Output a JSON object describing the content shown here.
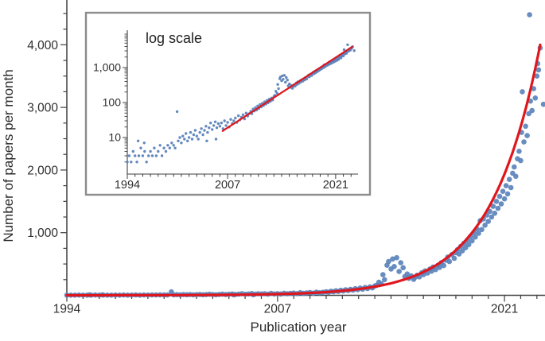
{
  "chart_data": {
    "type": "scatter",
    "title": "",
    "xlabel": "Publication year",
    "ylabel": "Number of papers per month",
    "legend": "none",
    "grid": false,
    "colors": {
      "points": "#5b83bb",
      "fit_line": "#e0161d",
      "axis": "#3f3f3f",
      "tick_labels": "#2f2f2f",
      "inset_border": "#8c8c8c",
      "background": "#ffffff"
    },
    "main_axis": {
      "xlim": [
        1994,
        2023.5
      ],
      "ylim": [
        0,
        4715
      ],
      "yticks_major": [
        1000,
        2000,
        3000,
        4000
      ],
      "ytick_minor_step": 250,
      "xticks_major": [
        1994,
        2007,
        2021
      ],
      "xtick_minor_step": 1
    },
    "inset": {
      "label": "log scale",
      "scale": "log",
      "xlim": [
        1994,
        2023.9
      ],
      "yticks_major": [
        10,
        100,
        1000
      ],
      "xticks_major": [
        1994,
        2007,
        2021
      ],
      "fit_start_year": 2006.35,
      "fit_end_year": 2023.3
    },
    "fit": {
      "type": "exponential",
      "reference_year": 2023.2,
      "value_at_reference": 4000,
      "growth_rate_per_year": 0.33
    },
    "points": [
      [
        1994,
        2
      ],
      [
        1994.25,
        3
      ],
      [
        1994.5,
        2
      ],
      [
        1994.75,
        4
      ],
      [
        1995,
        3
      ],
      [
        1995.25,
        2
      ],
      [
        1995.4,
        8
      ],
      [
        1995.5,
        3
      ],
      [
        1995.75,
        5
      ],
      [
        1996,
        3
      ],
      [
        1996.2,
        7
      ],
      [
        1996.25,
        4
      ],
      [
        1996.5,
        2
      ],
      [
        1996.75,
        3
      ],
      [
        1997,
        4
      ],
      [
        1997.25,
        3
      ],
      [
        1997.5,
        5
      ],
      [
        1997.75,
        3
      ],
      [
        1998,
        4
      ],
      [
        1998.25,
        6
      ],
      [
        1998.5,
        3
      ],
      [
        1998.75,
        5
      ],
      [
        1999,
        4
      ],
      [
        1999.25,
        6
      ],
      [
        1999.5,
        5
      ],
      [
        1999.75,
        7
      ],
      [
        2000,
        6
      ],
      [
        2000.2,
        5
      ],
      [
        2000.45,
        55
      ],
      [
        2000.6,
        8
      ],
      [
        2000.8,
        10
      ],
      [
        2001,
        7
      ],
      [
        2001.2,
        11
      ],
      [
        2001.4,
        9
      ],
      [
        2001.6,
        13
      ],
      [
        2001.8,
        8
      ],
      [
        2002,
        10
      ],
      [
        2002.2,
        14
      ],
      [
        2002.4,
        9
      ],
      [
        2002.6,
        12
      ],
      [
        2002.8,
        16
      ],
      [
        2003,
        11
      ],
      [
        2003.2,
        9
      ],
      [
        2003.4,
        14
      ],
      [
        2003.6,
        18
      ],
      [
        2003.8,
        12
      ],
      [
        2004,
        16
      ],
      [
        2004.2,
        21
      ],
      [
        2004.3,
        8
      ],
      [
        2004.4,
        14
      ],
      [
        2004.6,
        19
      ],
      [
        2004.8,
        26
      ],
      [
        2005,
        17
      ],
      [
        2005.2,
        22
      ],
      [
        2005.4,
        28
      ],
      [
        2005.5,
        9
      ],
      [
        2005.6,
        19
      ],
      [
        2005.8,
        25
      ],
      [
        2006,
        21
      ],
      [
        2006.2,
        26
      ],
      [
        2006.4,
        18
      ],
      [
        2006.6,
        30
      ],
      [
        2006.8,
        22
      ],
      [
        2007,
        27
      ],
      [
        2007.2,
        20
      ],
      [
        2007.4,
        33
      ],
      [
        2007.6,
        25
      ],
      [
        2007.8,
        30
      ],
      [
        2008,
        36
      ],
      [
        2008.2,
        27
      ],
      [
        2008.4,
        42
      ],
      [
        2008.6,
        32
      ],
      [
        2008.8,
        38
      ],
      [
        2009,
        45
      ],
      [
        2009.2,
        34
      ],
      [
        2009.4,
        50
      ],
      [
        2009.6,
        41
      ],
      [
        2009.8,
        48
      ],
      [
        2010,
        56
      ],
      [
        2010.15,
        48
      ],
      [
        2010.3,
        65
      ],
      [
        2010.45,
        57
      ],
      [
        2010.6,
        72
      ],
      [
        2010.75,
        61
      ],
      [
        2010.9,
        80
      ],
      [
        2011.05,
        68
      ],
      [
        2011.2,
        88
      ],
      [
        2011.35,
        75
      ],
      [
        2011.5,
        95
      ],
      [
        2011.65,
        82
      ],
      [
        2011.8,
        105
      ],
      [
        2011.95,
        90
      ],
      [
        2012.1,
        115
      ],
      [
        2012.25,
        98
      ],
      [
        2012.4,
        125
      ],
      [
        2012.55,
        108
      ],
      [
        2012.7,
        135
      ],
      [
        2012.85,
        118
      ],
      [
        2013,
        148
      ],
      [
        2013.1,
        160
      ],
      [
        2013.25,
        210
      ],
      [
        2013.4,
        185
      ],
      [
        2013.5,
        330
      ],
      [
        2013.6,
        250
      ],
      [
        2013.75,
        480
      ],
      [
        2013.85,
        540
      ],
      [
        2014,
        420
      ],
      [
        2014.1,
        580
      ],
      [
        2014.2,
        460
      ],
      [
        2014.35,
        600
      ],
      [
        2014.5,
        380
      ],
      [
        2014.6,
        520
      ],
      [
        2014.75,
        440
      ],
      [
        2014.85,
        300
      ],
      [
        2015,
        340
      ],
      [
        2015.1,
        270
      ],
      [
        2015.25,
        310
      ],
      [
        2015.4,
        255
      ],
      [
        2015.5,
        290
      ],
      [
        2015.6,
        320
      ],
      [
        2015.75,
        295
      ],
      [
        2015.9,
        360
      ],
      [
        2016,
        330
      ],
      [
        2016.1,
        390
      ],
      [
        2016.25,
        355
      ],
      [
        2016.4,
        420
      ],
      [
        2016.5,
        385
      ],
      [
        2016.6,
        450
      ],
      [
        2016.75,
        410
      ],
      [
        2016.9,
        480
      ],
      [
        2017,
        445
      ],
      [
        2017.1,
        520
      ],
      [
        2017.25,
        475
      ],
      [
        2017.4,
        560
      ],
      [
        2017.5,
        610
      ],
      [
        2017.6,
        540
      ],
      [
        2017.75,
        650
      ],
      [
        2017.9,
        590
      ],
      [
        2018,
        680
      ],
      [
        2018.1,
        730
      ],
      [
        2018.2,
        660
      ],
      [
        2018.3,
        780
      ],
      [
        2018.4,
        710
      ],
      [
        2018.5,
        830
      ],
      [
        2018.6,
        760
      ],
      [
        2018.7,
        880
      ],
      [
        2018.8,
        810
      ],
      [
        2018.9,
        940
      ],
      [
        2019,
        870
      ],
      [
        2019.1,
        1000
      ],
      [
        2019.2,
        930
      ],
      [
        2019.3,
        1060
      ],
      [
        2019.4,
        990
      ],
      [
        2019.5,
        1190
      ],
      [
        2019.6,
        1050
      ],
      [
        2019.7,
        1220
      ],
      [
        2019.8,
        1120
      ],
      [
        2019.9,
        1280
      ],
      [
        2020,
        1180
      ],
      [
        2020.1,
        1340
      ],
      [
        2020.2,
        1250
      ],
      [
        2020.3,
        1420
      ],
      [
        2020.4,
        1310
      ],
      [
        2020.5,
        1500
      ],
      [
        2020.6,
        1390
      ],
      [
        2020.7,
        1580
      ],
      [
        2020.8,
        1460
      ],
      [
        2020.9,
        1660
      ],
      [
        2021,
        1540
      ],
      [
        2021.1,
        1750
      ],
      [
        2021.2,
        1620
      ],
      [
        2021.3,
        1850
      ],
      [
        2021.4,
        1720
      ],
      [
        2021.5,
        1950
      ],
      [
        2021.6,
        2050
      ],
      [
        2021.7,
        1900
      ],
      [
        2021.8,
        2180
      ],
      [
        2021.9,
        2300
      ],
      [
        2022,
        2150
      ],
      [
        2022.05,
        2600
      ],
      [
        2022.1,
        3250
      ],
      [
        2022.2,
        2450
      ],
      [
        2022.3,
        2700
      ],
      [
        2022.4,
        2550
      ],
      [
        2022.5,
        2900
      ],
      [
        2022.55,
        4480
      ],
      [
        2022.6,
        3100
      ],
      [
        2022.7,
        2950
      ],
      [
        2022.8,
        3300
      ],
      [
        2022.9,
        3150
      ],
      [
        2023,
        3500
      ],
      [
        2023.05,
        3700
      ],
      [
        2023.1,
        3600
      ],
      [
        2023.2,
        3950
      ],
      [
        2023.4,
        3050
      ]
    ]
  }
}
